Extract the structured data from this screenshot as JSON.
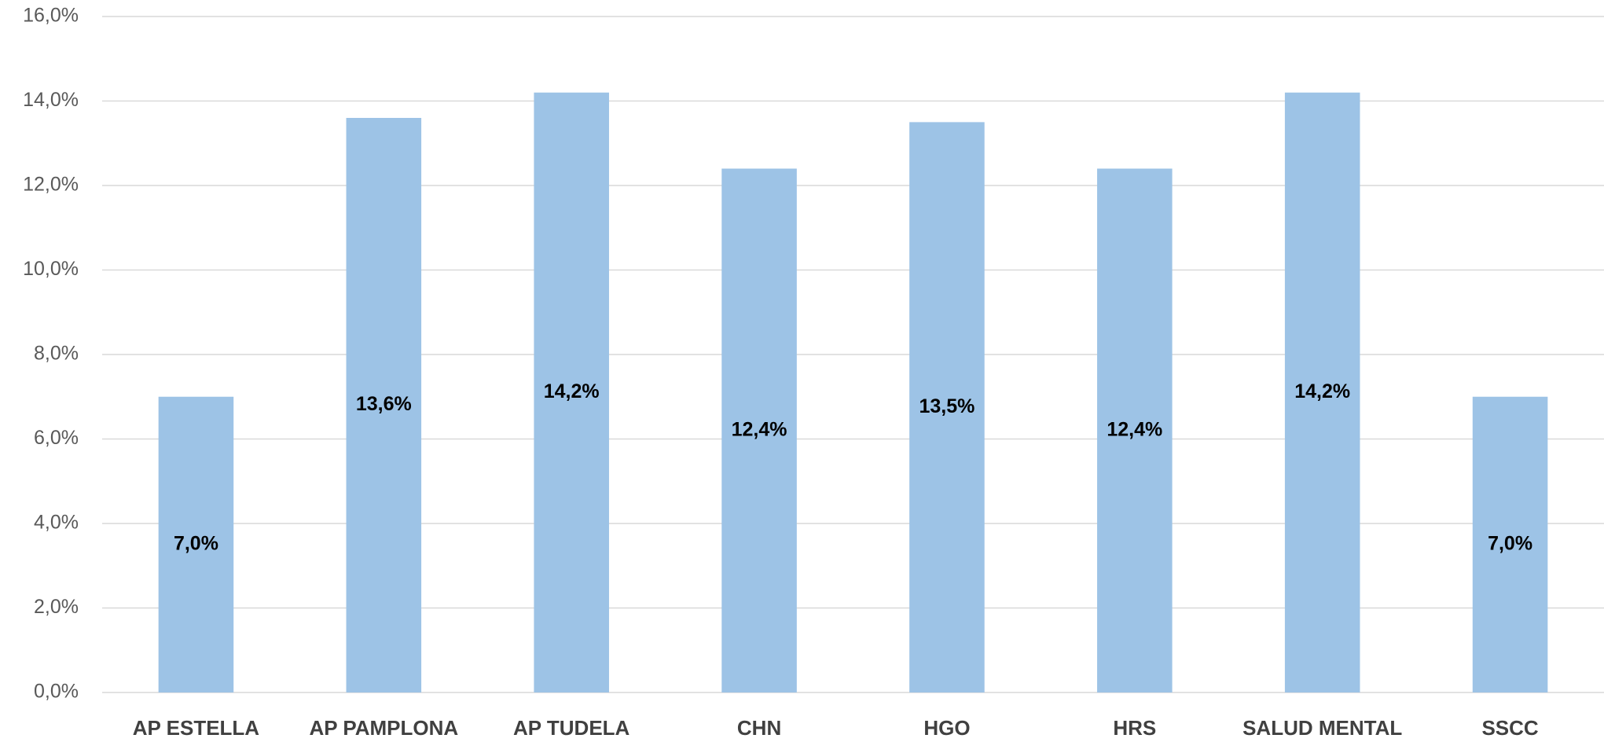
{
  "chart_data": {
    "type": "bar",
    "categories": [
      "AP ESTELLA",
      "AP PAMPLONA",
      "AP TUDELA",
      "CHN",
      "HGO",
      "HRS",
      "SALUD MENTAL",
      "SSCC"
    ],
    "values": [
      7.0,
      13.6,
      14.2,
      12.4,
      13.5,
      12.4,
      14.2,
      7.0
    ],
    "value_labels": [
      "7,0%",
      "13,6%",
      "14,2%",
      "12,4%",
      "13,5%",
      "12,4%",
      "14,2%",
      "7,0%"
    ],
    "color": "#9dc3e6",
    "ylim": [
      0,
      16
    ],
    "yticks": [
      {
        "value": 0,
        "label": "0,0%"
      },
      {
        "value": 2,
        "label": "2,0%"
      },
      {
        "value": 4,
        "label": "4,0%"
      },
      {
        "value": 6,
        "label": "6,0%"
      },
      {
        "value": 8,
        "label": "8,0%"
      },
      {
        "value": 10,
        "label": "10,0%"
      },
      {
        "value": 12,
        "label": "12,0%"
      },
      {
        "value": 14,
        "label": "14,0%"
      },
      {
        "value": 16,
        "label": "16,0%"
      }
    ],
    "grid": true
  }
}
